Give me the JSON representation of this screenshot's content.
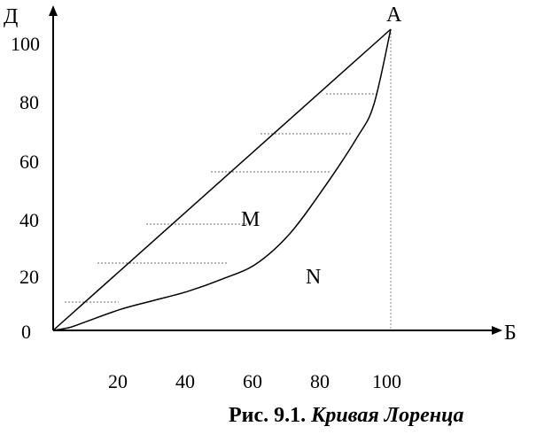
{
  "axes": {
    "y_label": "Д",
    "x_label": "Б",
    "origin_label": "0",
    "x_ticks": [
      "20",
      "40",
      "60",
      "80",
      "100"
    ],
    "y_ticks": [
      "20",
      "40",
      "60",
      "80",
      "100"
    ]
  },
  "points": {
    "A": "А",
    "M": "М",
    "N": "N"
  },
  "curve": {
    "equality_line": [
      [
        0,
        0
      ],
      [
        100,
        100
      ]
    ],
    "lorenz": [
      [
        0,
        0
      ],
      [
        5,
        1
      ],
      [
        10,
        3
      ],
      [
        20,
        7
      ],
      [
        30,
        10
      ],
      [
        40,
        13
      ],
      [
        50,
        17
      ],
      [
        60,
        22
      ],
      [
        70,
        32
      ],
      [
        80,
        47
      ],
      [
        90,
        64
      ],
      [
        95,
        75
      ],
      [
        100,
        100
      ]
    ]
  },
  "caption": {
    "number": "Рис. 9.1.",
    "title": "Кривая Лоренца"
  }
}
